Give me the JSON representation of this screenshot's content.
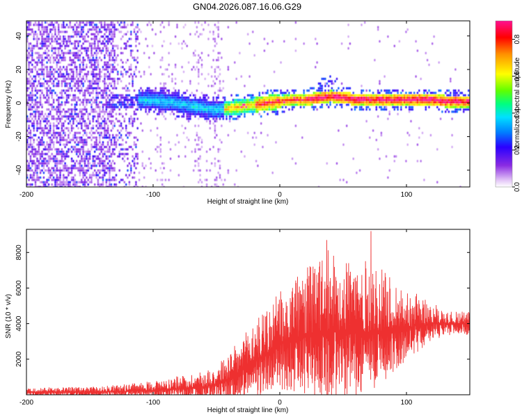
{
  "figure_title": "GN04.2026.087.16.06.G29",
  "chart_data": [
    {
      "type": "heatmap",
      "name": "spectrogram",
      "xlabel": "Height of straight line (km)",
      "ylabel": "Frequency (Hz)",
      "xlim": [
        -200,
        150
      ],
      "ylim": [
        -50,
        49
      ],
      "xticks": [
        -200,
        -100,
        0,
        100
      ],
      "yticks": [
        -40,
        -20,
        0,
        20,
        40
      ],
      "colorbar": {
        "label": "Normalized spectral amplitude",
        "range": [
          0.0,
          0.9
        ],
        "ticks": [
          0.0,
          0.2,
          0.4,
          0.6,
          0.8
        ],
        "colormap": [
          "#ffffff",
          "#e3c6f7",
          "#8a2be2",
          "#2a00ff",
          "#0080ff",
          "#00e0ff",
          "#00ff80",
          "#60ff00",
          "#ffff00",
          "#ff9000",
          "#ff0000",
          "#ff1090"
        ]
      },
      "ridge": {
        "x": [
          -130,
          -110,
          -90,
          -70,
          -60,
          -50,
          -40,
          -30,
          -20,
          -10,
          0,
          10,
          20,
          30,
          40,
          50,
          60,
          70,
          80,
          90,
          100,
          110,
          120,
          130,
          150
        ],
        "y": [
          1,
          2,
          1,
          -2,
          -3,
          -4,
          -3,
          -2,
          -1,
          0,
          1,
          2,
          2,
          3,
          4,
          3,
          2,
          2,
          2,
          2,
          2,
          2,
          2,
          1,
          1
        ]
      }
    },
    {
      "type": "line",
      "name": "snr",
      "xlabel": "Height of straight line (km)",
      "ylabel": "SNR (10 * v/v)",
      "xlim": [
        -200,
        150
      ],
      "ylim": [
        0,
        9300
      ],
      "xticks": [
        -200,
        -100,
        0,
        100
      ],
      "yticks": [
        2000,
        4000,
        6000,
        8000
      ],
      "color": "#ee3030",
      "envelope": {
        "x": [
          -200,
          -150,
          -120,
          -100,
          -80,
          -60,
          -50,
          -40,
          -30,
          -20,
          -10,
          0,
          10,
          20,
          30,
          40,
          50,
          60,
          70,
          80,
          90,
          100,
          110,
          120,
          130,
          140,
          150
        ],
        "baseline": [
          150,
          150,
          200,
          250,
          350,
          450,
          600,
          900,
          1300,
          1900,
          2300,
          2800,
          3100,
          3300,
          3500,
          3600,
          3600,
          3500,
          3500,
          3600,
          3700,
          3800,
          3900,
          4000,
          4000,
          4000,
          4000
        ],
        "amplitude": [
          250,
          300,
          400,
          550,
          700,
          900,
          1100,
          1500,
          1900,
          2300,
          2700,
          3000,
          3400,
          3800,
          4300,
          4600,
          4500,
          4300,
          4000,
          3500,
          2800,
          2200,
          1700,
          1200,
          800,
          700,
          800
        ]
      },
      "peaks": [
        {
          "x": 37,
          "y": 8700
        },
        {
          "x": 72,
          "y": 9200
        }
      ]
    }
  ]
}
